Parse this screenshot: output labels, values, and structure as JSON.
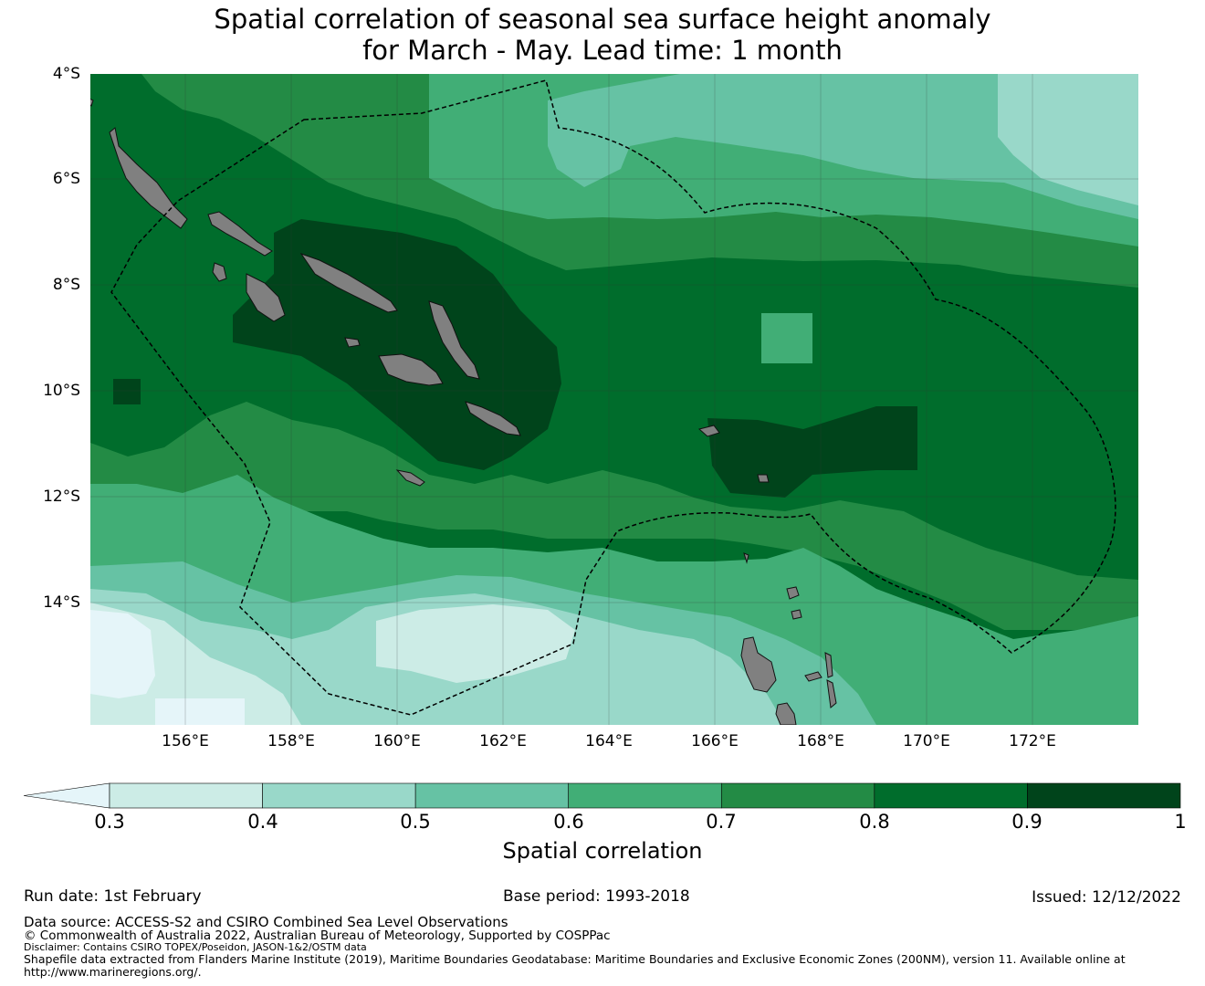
{
  "title": {
    "line1": "Spatial correlation of seasonal sea surface height anomaly",
    "line2": "for March - May. Lead time: 1 month"
  },
  "map": {
    "lat_labels": [
      "4°S",
      "6°S",
      "8°S",
      "10°S",
      "12°S",
      "14°S"
    ],
    "lon_labels": [
      "156°E",
      "158°E",
      "160°E",
      "162°E",
      "164°E",
      "166°E",
      "168°E",
      "170°E",
      "172°E"
    ],
    "land_color": "#808080",
    "boundary_style": "dashed"
  },
  "colorbar": {
    "ticks": [
      "0.3",
      "0.4",
      "0.5",
      "0.6",
      "0.7",
      "0.8",
      "0.9",
      "1"
    ],
    "colors": [
      "#e5f5f9",
      "#ccece6",
      "#99d8c9",
      "#66c2a4",
      "#41ae76",
      "#238b45",
      "#006d2c",
      "#00441b"
    ],
    "label": "Spatial correlation"
  },
  "footer": {
    "run_date": "Run date: 1st February",
    "base_period": "Base period: 1993-2018",
    "issued": "Issued: 12/12/2022",
    "data_source": "Data source: ACCESS-S2 and CSIRO Combined Sea Level Observations",
    "copyright": "© Commonwealth of Australia 2022, Australian Bureau of Meteorology, Supported by COSPPac",
    "disclaimer": "Disclaimer: Contains CSIRO TOPEX/Poseidon, JASON-1&2/OSTM data",
    "shapefile": "Shapefile data extracted from Flanders Marine Institute (2019), Maritime Boundaries Geodatabase: Maritime Boundaries and Exclusive Economic Zones (200NM), version 11. Available online at",
    "url": "http://www.marineregions.org/."
  }
}
